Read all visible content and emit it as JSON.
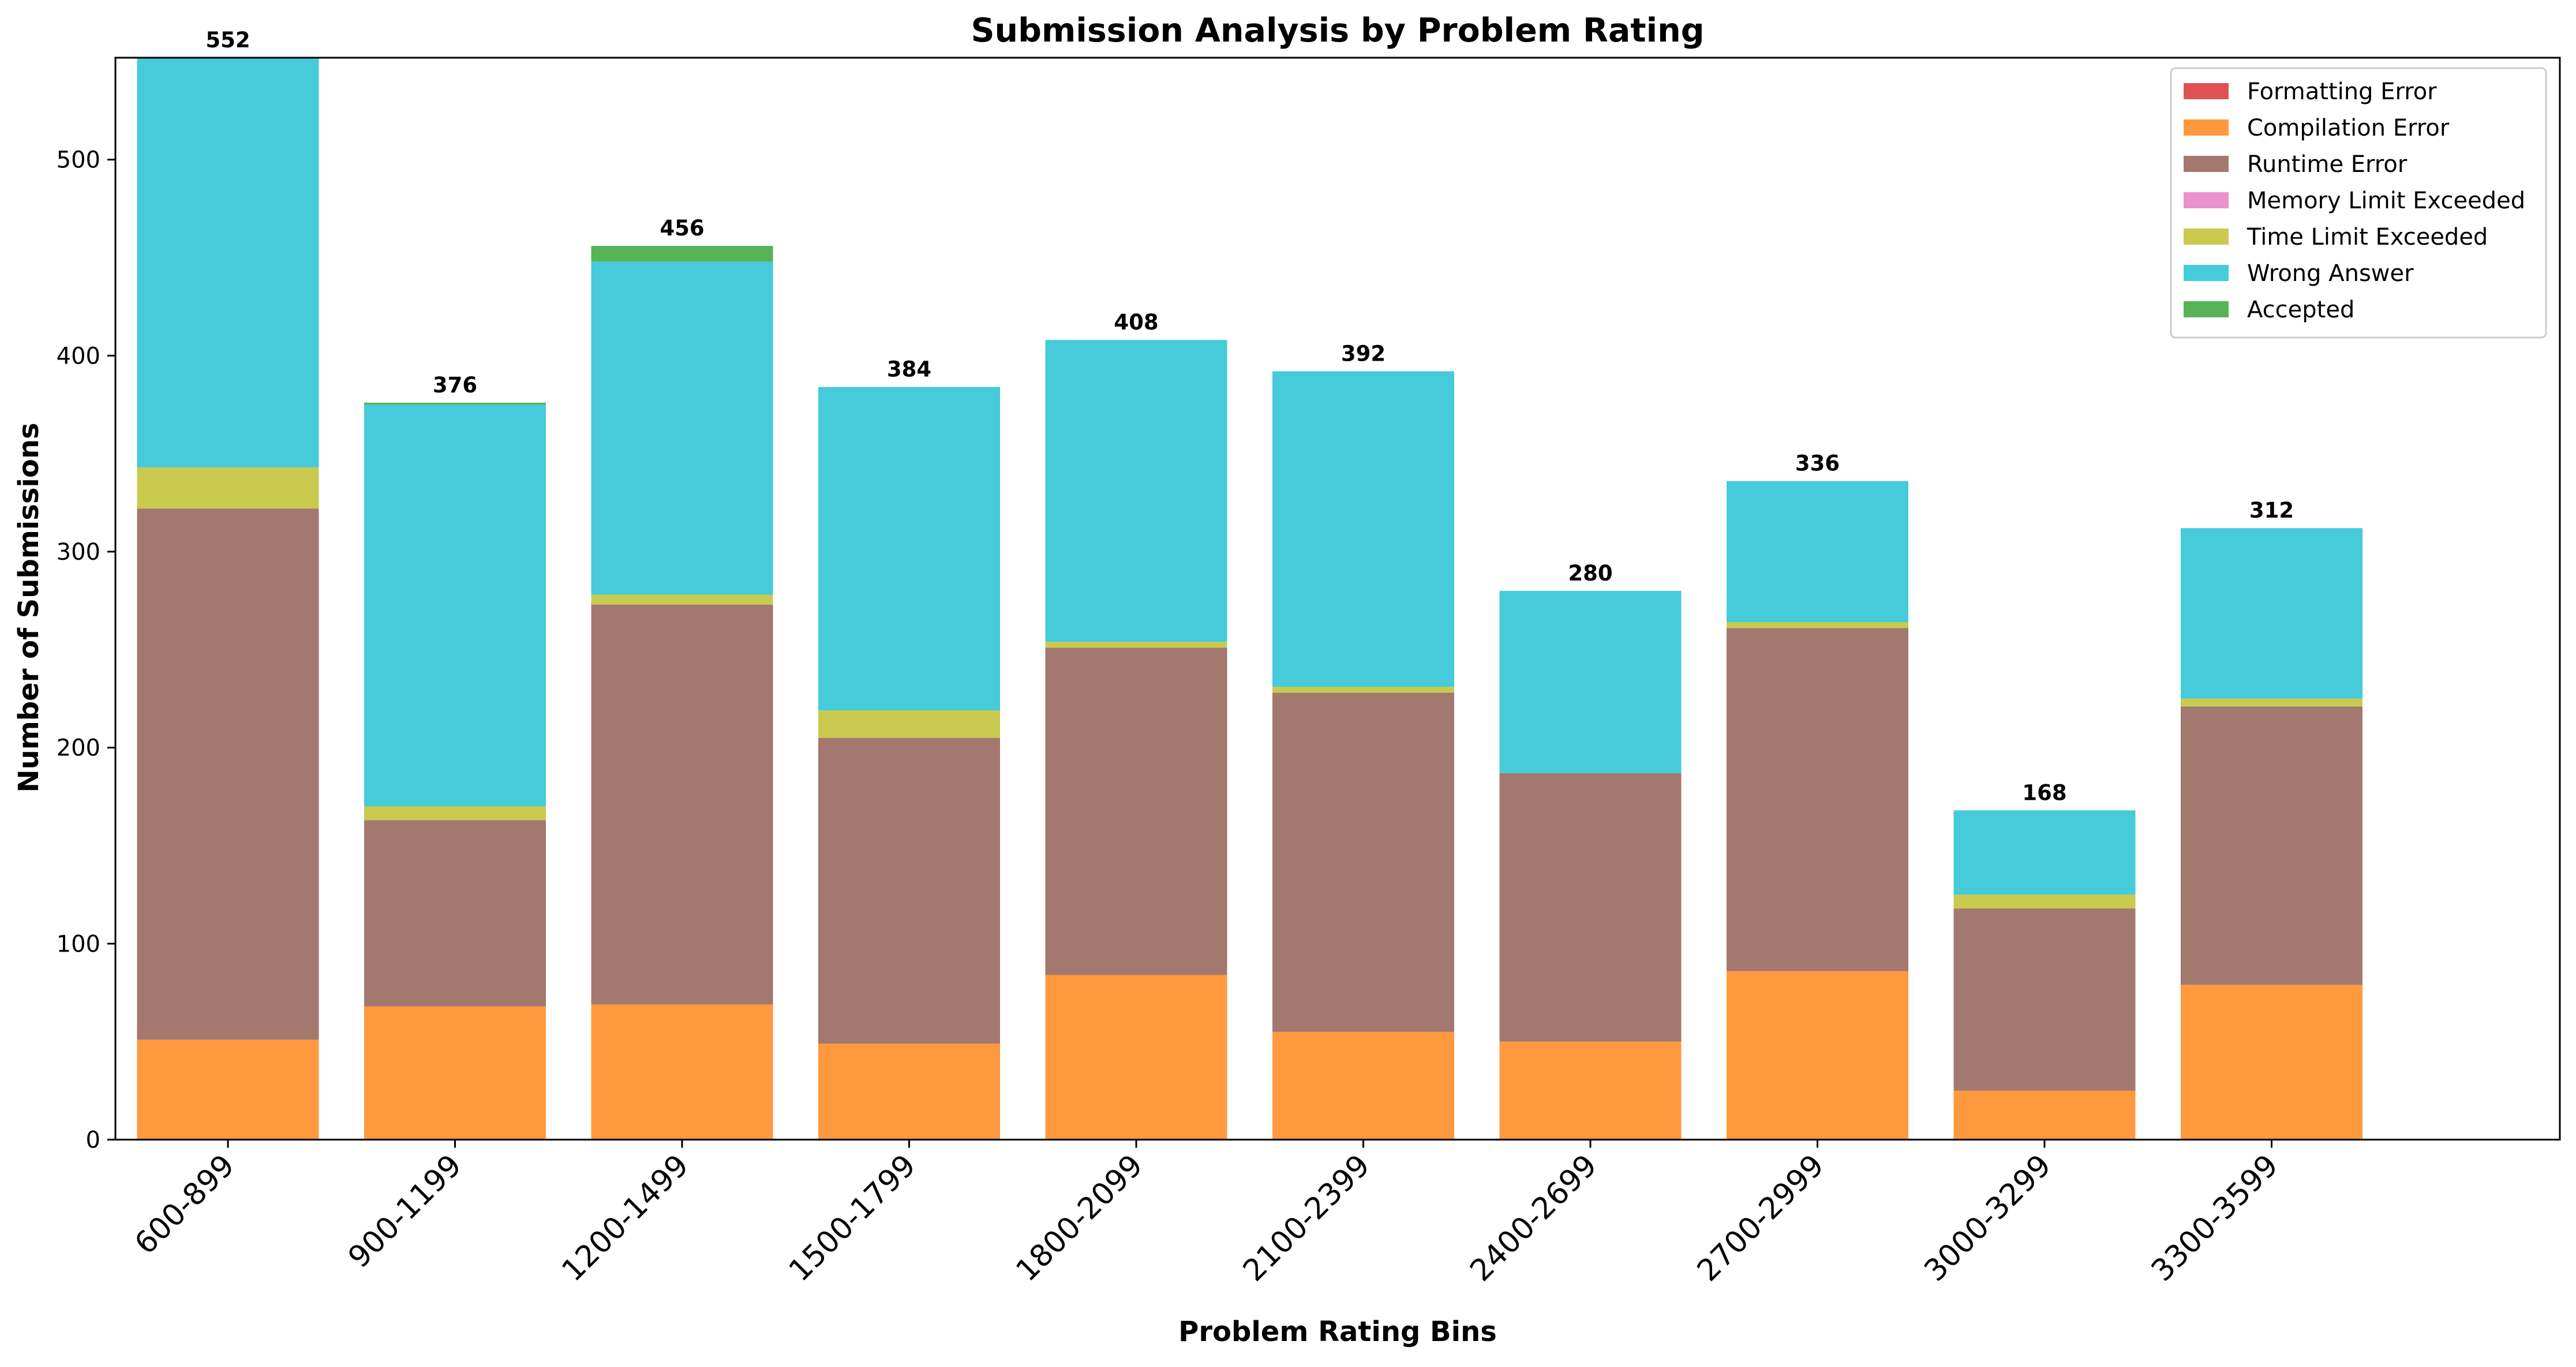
{
  "chart_data": {
    "type": "bar",
    "stacked": true,
    "title": "Submission Analysis by Problem Rating",
    "xlabel": "Problem Rating Bins",
    "ylabel": "Number of Submissions",
    "ylim": [
      0,
      552
    ],
    "yticks": [
      0,
      100,
      200,
      300,
      400,
      500
    ],
    "grid": false,
    "legend_position": "upper right",
    "categories": [
      "600-899",
      "900-1199",
      "1200-1499",
      "1500-1799",
      "1800-2099",
      "2100-2399",
      "2400-2699",
      "2700-2999",
      "3000-3299",
      "3300-3599"
    ],
    "series": [
      {
        "name": "Formatting Error",
        "color": "#d62728",
        "values": [
          0,
          0,
          0,
          0,
          0,
          0,
          0,
          0,
          0,
          0
        ]
      },
      {
        "name": "Compilation Error",
        "color": "#ff7f0e",
        "values": [
          51,
          68,
          69,
          49,
          84,
          55,
          50,
          86,
          25,
          79
        ]
      },
      {
        "name": "Runtime Error",
        "color": "#8c564b",
        "values": [
          271,
          95,
          204,
          156,
          167,
          173,
          137,
          175,
          93,
          142
        ]
      },
      {
        "name": "Memory Limit Exceeded",
        "color": "#e377c2",
        "values": [
          0,
          0,
          0,
          0,
          0,
          0,
          0,
          0,
          0,
          0
        ]
      },
      {
        "name": "Time Limit Exceeded",
        "color": "#bcbd22",
        "values": [
          21,
          7,
          5,
          14,
          3,
          3,
          0,
          3,
          7,
          4
        ]
      },
      {
        "name": "Wrong Answer",
        "color": "#17becf",
        "values": [
          209,
          205,
          170,
          165,
          154,
          161,
          93,
          72,
          43,
          87
        ]
      },
      {
        "name": "Accepted",
        "color": "#2ca02c",
        "values": [
          0,
          1,
          8,
          0,
          0,
          0,
          0,
          0,
          0,
          0
        ]
      }
    ],
    "totals": [
      552,
      376,
      456,
      384,
      408,
      392,
      280,
      336,
      168,
      312
    ],
    "total_labels": [
      "552",
      "376",
      "456",
      "384",
      "408",
      "392",
      "280",
      "336",
      "168",
      "312"
    ]
  }
}
